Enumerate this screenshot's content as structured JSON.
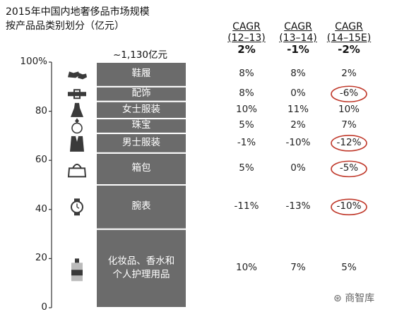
{
  "title": "2015年中国内地奢侈品市场规模",
  "subtitle": "按产品品类别划分（亿元）",
  "total_label": "~1,130亿元",
  "watermark": "商智库",
  "colors": {
    "bar": "#6b6b6b",
    "divider": "#ffffff",
    "highlight_circle": "#c0392b",
    "text": "#222222"
  },
  "columns": [
    {
      "line1": "CAGR",
      "line2": "(12–13)",
      "total": "2%"
    },
    {
      "line1": "CAGR",
      "line2": "(13–14)",
      "total": "-1%"
    },
    {
      "line1": "CAGR",
      "line2": "(14–15E)",
      "total": "-2%"
    }
  ],
  "chart_data": {
    "type": "bar",
    "stacked": true,
    "ylim": [
      0,
      100
    ],
    "y_ticks": [
      "0",
      "20",
      "40",
      "60",
      "80",
      "100%"
    ],
    "segments": [
      {
        "label": "化妆品、香水和个人护理用品",
        "icon": "cosmetics-icon",
        "share": 32,
        "cagr": [
          "10%",
          "7%",
          "5%"
        ],
        "highlight": [
          false,
          false,
          false
        ]
      },
      {
        "label": "腕表",
        "icon": "watch-icon",
        "share": 18,
        "cagr": [
          "-11%",
          "-13%",
          "-10%"
        ],
        "highlight": [
          false,
          false,
          true
        ]
      },
      {
        "label": "箱包",
        "icon": "handbag-icon",
        "share": 13,
        "cagr": [
          "5%",
          "0%",
          "-5%"
        ],
        "highlight": [
          false,
          false,
          true
        ]
      },
      {
        "label": "男士服装",
        "icon": "menswear-icon",
        "share": 8,
        "cagr": [
          "-1%",
          "-10%",
          "-12%"
        ],
        "highlight": [
          false,
          false,
          true
        ]
      },
      {
        "label": "珠宝",
        "icon": "ring-icon",
        "share": 6,
        "cagr": [
          "5%",
          "2%",
          "7%"
        ],
        "highlight": [
          false,
          false,
          false
        ]
      },
      {
        "label": "女士服装",
        "icon": "dress-icon",
        "share": 7,
        "cagr": [
          "10%",
          "11%",
          "10%"
        ],
        "highlight": [
          false,
          false,
          false
        ]
      },
      {
        "label": "配饰",
        "icon": "belt-icon",
        "share": 6,
        "cagr": [
          "8%",
          "0%",
          "-6%"
        ],
        "highlight": [
          false,
          false,
          true
        ]
      },
      {
        "label": "鞋履",
        "icon": "shoes-icon",
        "share": 10,
        "cagr": [
          "8%",
          "8%",
          "2%"
        ],
        "highlight": [
          false,
          false,
          false
        ]
      }
    ]
  }
}
